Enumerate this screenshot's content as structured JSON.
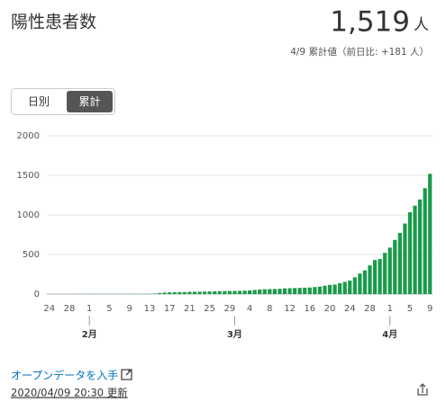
{
  "header": {
    "title": "陽性患者数",
    "value": "1,519",
    "unit": "人",
    "subtitle": "4/9 累計値（前日比: +181 人）"
  },
  "toggle": [
    "日別",
    "累計"
  ],
  "footer": {
    "link": "オープンデータを入手",
    "updated": "2020/04/09 20:30 更新"
  },
  "chart_data": {
    "type": "bar",
    "color": "#1a9a4b",
    "grid": true,
    "ylim": [
      0,
      2000
    ],
    "yticks": [
      0,
      500,
      1000,
      1500,
      2000
    ],
    "categories": [
      "24",
      null,
      null,
      null,
      "28",
      null,
      null,
      null,
      "1",
      null,
      null,
      null,
      "5",
      null,
      null,
      null,
      "9",
      null,
      null,
      null,
      "13",
      null,
      null,
      null,
      "17",
      null,
      null,
      null,
      "21",
      null,
      null,
      null,
      "25",
      null,
      null,
      null,
      "29",
      null,
      null,
      null,
      "4",
      null,
      null,
      null,
      "8",
      null,
      null,
      null,
      "12",
      null,
      null,
      null,
      "16",
      null,
      null,
      null,
      "20",
      null,
      null,
      null,
      "24",
      null,
      null,
      null,
      "28",
      null,
      null,
      null,
      "1",
      null,
      null,
      null,
      "5",
      null,
      null,
      null,
      "9"
    ],
    "month_categories": [
      null,
      null,
      null,
      null,
      null,
      null,
      null,
      null,
      "2月",
      null,
      null,
      null,
      null,
      null,
      null,
      null,
      null,
      null,
      null,
      null,
      null,
      null,
      null,
      null,
      null,
      null,
      null,
      null,
      null,
      null,
      null,
      null,
      null,
      null,
      null,
      null,
      null,
      "3月",
      null,
      null,
      null,
      null,
      null,
      null,
      null,
      null,
      null,
      null,
      null,
      null,
      null,
      null,
      null,
      null,
      null,
      null,
      null,
      null,
      null,
      null,
      null,
      null,
      null,
      null,
      null,
      null,
      null,
      null,
      "4月",
      null,
      null,
      null,
      null,
      null,
      null,
      null,
      null
    ],
    "values": [
      1,
      2,
      2,
      2,
      2,
      2,
      3,
      3,
      3,
      3,
      3,
      3,
      3,
      3,
      3,
      3,
      3,
      3,
      3,
      3,
      4,
      6,
      14,
      19,
      22,
      24,
      25,
      25,
      28,
      29,
      30,
      31,
      33,
      36,
      37,
      38,
      39,
      40,
      41,
      43,
      46,
      52,
      58,
      61,
      63,
      64,
      67,
      72,
      74,
      76,
      78,
      81,
      83,
      89,
      95,
      105,
      116,
      120,
      138,
      154,
      171,
      212,
      259,
      299,
      362,
      430,
      443,
      521,
      587,
      684,
      773,
      891,
      1034,
      1117,
      1196,
      1338,
      1519
    ]
  }
}
